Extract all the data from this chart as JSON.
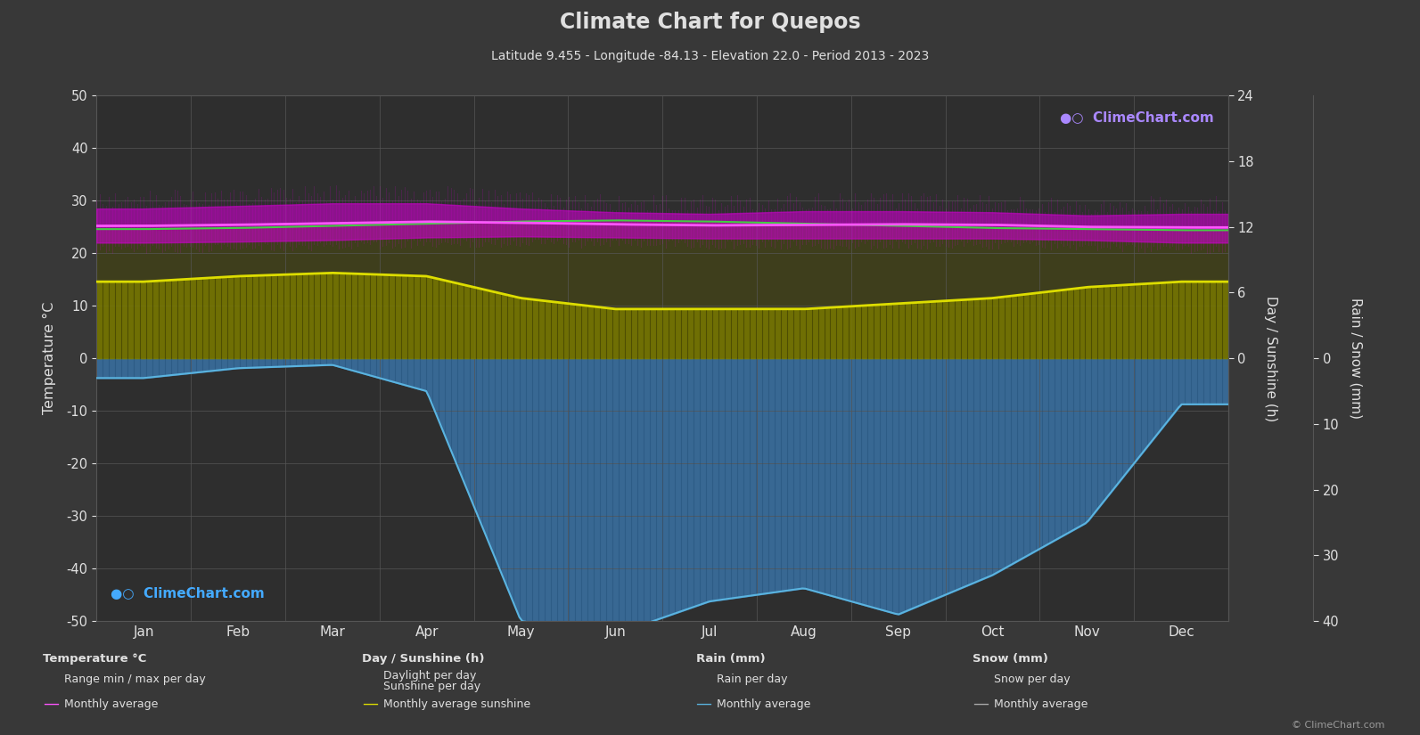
{
  "title": "Climate Chart for Quepos",
  "subtitle": "Latitude 9.455 - Longitude -84.13 - Elevation 22.0 - Period 2013 - 2023",
  "bg_color": "#383838",
  "plot_bg_color": "#2e2e2e",
  "months": [
    "Jan",
    "Feb",
    "Mar",
    "Apr",
    "May",
    "Jun",
    "Jul",
    "Aug",
    "Sep",
    "Oct",
    "Nov",
    "Dec"
  ],
  "temp_ylim": [
    -50,
    50
  ],
  "temp_avg": [
    25.2,
    25.4,
    25.7,
    26.0,
    25.8,
    25.5,
    25.3,
    25.4,
    25.5,
    25.4,
    25.0,
    24.9
  ],
  "temp_max_avg": [
    28.5,
    29.0,
    29.5,
    29.5,
    28.5,
    27.8,
    27.5,
    28.0,
    28.0,
    27.8,
    27.2,
    27.5
  ],
  "temp_min_avg": [
    22.0,
    22.2,
    22.5,
    23.0,
    23.2,
    23.0,
    22.8,
    22.8,
    22.8,
    22.8,
    22.5,
    22.0
  ],
  "daylight_h": [
    11.8,
    11.9,
    12.1,
    12.3,
    12.5,
    12.6,
    12.5,
    12.3,
    12.1,
    11.9,
    11.8,
    11.7
  ],
  "sunshine_h": [
    7.0,
    7.5,
    7.8,
    7.5,
    5.5,
    4.5,
    4.5,
    4.5,
    5.0,
    5.5,
    6.5,
    7.0
  ],
  "rain_mm_per_day": [
    3.0,
    1.5,
    1.0,
    5.0,
    40.0,
    42.0,
    37.0,
    35.0,
    39.0,
    33.0,
    25.0,
    7.0
  ],
  "sunshine_scale": 2.0833,
  "rain_scale": 1.25,
  "rain_color": "#3a6f9f",
  "rain_line_color": "#5ab4e0",
  "temp_range_color": "#cc00cc",
  "temp_avg_color": "#ff55ff",
  "daylight_color": "#44cc44",
  "sunshine_fill_color": "#787800",
  "sunshine_line_color": "#dddd00",
  "grid_color": "#555555",
  "text_color": "#e0e0e0",
  "snow_color": "#8899aa"
}
